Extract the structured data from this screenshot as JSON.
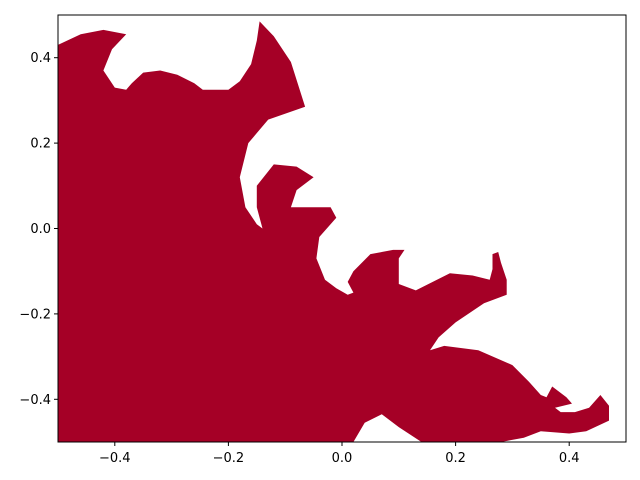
{
  "chart_data": {
    "type": "area",
    "title": "",
    "xlabel": "",
    "ylabel": "",
    "xlim": [
      -0.5,
      0.5
    ],
    "ylim": [
      -0.5,
      0.5
    ],
    "grid": false,
    "fill_color": "#a50026",
    "background_color": "#ffffff",
    "xticks": [
      -0.4,
      -0.2,
      0.0,
      0.2,
      0.4
    ],
    "xtick_labels": [
      "−0.4",
      "−0.2",
      "0.0",
      "0.2",
      "0.4"
    ],
    "yticks": [
      0.4,
      0.2,
      0.0,
      -0.2,
      -0.4
    ],
    "ytick_labels": [
      "0.4",
      "0.2",
      "0.0",
      "−0.2",
      "−0.4"
    ],
    "series": [
      {
        "filled_region_boundary": [
          [
            -0.5,
            0.43
          ],
          [
            -0.46,
            0.455
          ],
          [
            -0.42,
            0.465
          ],
          [
            -0.38,
            0.455
          ],
          [
            -0.405,
            0.42
          ],
          [
            -0.42,
            0.37
          ],
          [
            -0.4,
            0.33
          ],
          [
            -0.38,
            0.325
          ],
          [
            -0.37,
            0.34
          ],
          [
            -0.35,
            0.365
          ],
          [
            -0.32,
            0.37
          ],
          [
            -0.29,
            0.36
          ],
          [
            -0.26,
            0.34
          ],
          [
            -0.245,
            0.325
          ],
          [
            -0.2,
            0.325
          ],
          [
            -0.18,
            0.345
          ],
          [
            -0.16,
            0.385
          ],
          [
            -0.15,
            0.44
          ],
          [
            -0.145,
            0.485
          ],
          [
            -0.12,
            0.45
          ],
          [
            -0.09,
            0.39
          ],
          [
            -0.065,
            0.285
          ],
          [
            -0.13,
            0.255
          ],
          [
            -0.165,
            0.2
          ],
          [
            -0.18,
            0.12
          ],
          [
            -0.17,
            0.05
          ],
          [
            -0.15,
            0.01
          ],
          [
            -0.14,
            0.0
          ],
          [
            -0.15,
            0.05
          ],
          [
            -0.15,
            0.1
          ],
          [
            -0.12,
            0.15
          ],
          [
            -0.08,
            0.145
          ],
          [
            -0.05,
            0.12
          ],
          [
            -0.08,
            0.09
          ],
          [
            -0.09,
            0.05
          ],
          [
            -0.06,
            0.05
          ],
          [
            -0.02,
            0.05
          ],
          [
            -0.01,
            0.025
          ],
          [
            -0.04,
            -0.02
          ],
          [
            -0.045,
            -0.07
          ],
          [
            -0.03,
            -0.12
          ],
          [
            -0.01,
            -0.14
          ],
          [
            0.01,
            -0.155
          ],
          [
            0.02,
            -0.15
          ],
          [
            0.01,
            -0.125
          ],
          [
            0.02,
            -0.1
          ],
          [
            0.05,
            -0.06
          ],
          [
            0.09,
            -0.05
          ],
          [
            0.11,
            -0.05
          ],
          [
            0.1,
            -0.07
          ],
          [
            0.1,
            -0.13
          ],
          [
            0.13,
            -0.145
          ],
          [
            0.19,
            -0.105
          ],
          [
            0.23,
            -0.11
          ],
          [
            0.26,
            -0.12
          ],
          [
            0.265,
            -0.095
          ],
          [
            0.265,
            -0.06
          ],
          [
            0.275,
            -0.055
          ],
          [
            0.28,
            -0.08
          ],
          [
            0.29,
            -0.12
          ],
          [
            0.29,
            -0.155
          ],
          [
            0.25,
            -0.175
          ],
          [
            0.2,
            -0.22
          ],
          [
            0.17,
            -0.255
          ],
          [
            0.155,
            -0.285
          ],
          [
            0.18,
            -0.275
          ],
          [
            0.24,
            -0.285
          ],
          [
            0.3,
            -0.32
          ],
          [
            0.33,
            -0.36
          ],
          [
            0.35,
            -0.39
          ],
          [
            0.36,
            -0.395
          ],
          [
            0.37,
            -0.37
          ],
          [
            0.395,
            -0.395
          ],
          [
            0.405,
            -0.41
          ],
          [
            0.375,
            -0.42
          ],
          [
            0.385,
            -0.43
          ],
          [
            0.41,
            -0.43
          ],
          [
            0.435,
            -0.42
          ],
          [
            0.455,
            -0.39
          ],
          [
            0.47,
            -0.415
          ],
          [
            0.47,
            -0.45
          ],
          [
            0.43,
            -0.475
          ],
          [
            0.4,
            -0.48
          ],
          [
            0.35,
            -0.475
          ],
          [
            0.32,
            -0.49
          ],
          [
            0.28,
            -0.5
          ],
          [
            0.14,
            -0.5
          ],
          [
            0.1,
            -0.465
          ],
          [
            0.07,
            -0.435
          ],
          [
            0.04,
            -0.455
          ],
          [
            0.02,
            -0.5
          ],
          [
            -0.5,
            -0.5
          ]
        ]
      }
    ]
  }
}
